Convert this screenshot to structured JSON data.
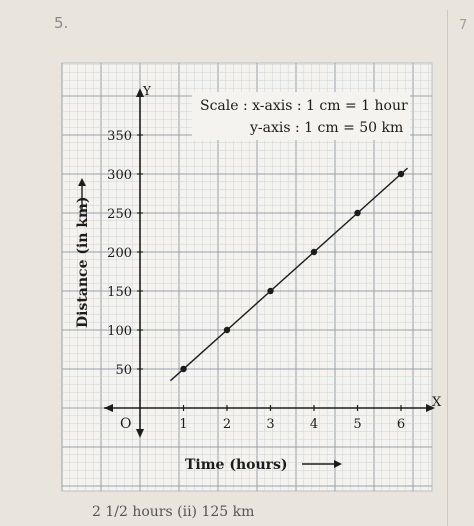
{
  "page": {
    "number": "5.",
    "side_number": "7",
    "bottom_fragment": "2 1/2 hours   (ii) 125 km"
  },
  "colors": {
    "paper": "#f4f3ef",
    "minor_grid": "#cdd2d8",
    "major_grid": "#98a0aa",
    "axis": "#1c1c1c",
    "line": "#1c1c1c",
    "point": "#1c1c1c"
  },
  "chart_data": {
    "type": "line",
    "title": "",
    "xlabel": "Time (hours)",
    "ylabel": "Distance (in km)",
    "x_axis_letter": "X",
    "y_axis_letter": "Y",
    "origin_label": "O",
    "x": [
      1,
      2,
      3,
      4,
      5,
      6
    ],
    "series": [
      {
        "values": [
          50,
          100,
          150,
          200,
          250,
          300
        ]
      }
    ],
    "xticks": [
      "1",
      "2",
      "3",
      "4",
      "5",
      "6"
    ],
    "yticks": [
      "50",
      "100",
      "150",
      "200",
      "250",
      "300",
      "350"
    ],
    "xlim": [
      0,
      6
    ],
    "ylim": [
      0,
      350
    ],
    "grid": true,
    "scale_note": {
      "line1": "Scale : x-axis : 1 cm = 1 hour",
      "line2": "y-axis : 1 cm = 50 km"
    }
  }
}
